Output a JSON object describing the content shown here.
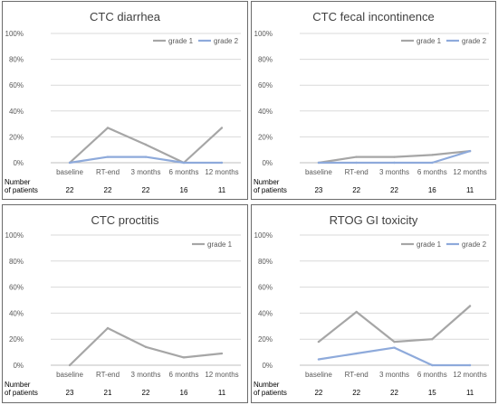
{
  "chart_data": [
    {
      "type": "line",
      "title": "CTC diarrhea",
      "categories": [
        "baseline",
        "RT-end",
        "3 months",
        "6 months",
        "12 months"
      ],
      "ylim": [
        0,
        100
      ],
      "yticks": [
        "0%",
        "20%",
        "40%",
        "60%",
        "80%",
        "100%"
      ],
      "grid": true,
      "legend_position": "top-right",
      "series": [
        {
          "name": "grade 1",
          "color": "#a6a6a6",
          "values": [
            0,
            27,
            14,
            0,
            27
          ]
        },
        {
          "name": "grade 2",
          "color": "#8eaadb",
          "values": [
            0,
            4.5,
            4.5,
            0,
            0
          ]
        }
      ],
      "patients_label": [
        "Number",
        "of patients"
      ],
      "patients": [
        "22",
        "22",
        "22",
        "16",
        "11"
      ]
    },
    {
      "type": "line",
      "title": "CTC fecal incontinence",
      "categories": [
        "baseline",
        "RT-end",
        "3 months",
        "6 months",
        "12 months"
      ],
      "ylim": [
        0,
        100
      ],
      "yticks": [
        "0%",
        "20%",
        "40%",
        "60%",
        "80%",
        "100%"
      ],
      "grid": true,
      "legend_position": "top-right",
      "series": [
        {
          "name": "grade 1",
          "color": "#a6a6a6",
          "values": [
            0,
            4.5,
            4.5,
            6,
            9
          ]
        },
        {
          "name": "grade 2",
          "color": "#8eaadb",
          "values": [
            0,
            0,
            0,
            0,
            9
          ]
        }
      ],
      "patients_label": [
        "Number",
        "of patients"
      ],
      "patients": [
        "23",
        "22",
        "22",
        "16",
        "11"
      ]
    },
    {
      "type": "line",
      "title": "CTC proctitis",
      "categories": [
        "baseline",
        "RT-end",
        "3 months",
        "6 months",
        "12 months"
      ],
      "ylim": [
        0,
        100
      ],
      "yticks": [
        "0%",
        "20%",
        "40%",
        "60%",
        "80%",
        "100%"
      ],
      "grid": true,
      "legend_position": "top-right",
      "series": [
        {
          "name": "grade 1",
          "color": "#a6a6a6",
          "values": [
            0,
            28.5,
            14,
            6,
            9
          ]
        }
      ],
      "patients_label": [
        "Number",
        "of patients"
      ],
      "patients": [
        "23",
        "21",
        "22",
        "16",
        "11"
      ]
    },
    {
      "type": "line",
      "title": "RTOG GI toxicity",
      "categories": [
        "baseline",
        "RT-end",
        "3 months",
        "6 months",
        "12 months"
      ],
      "ylim": [
        0,
        100
      ],
      "yticks": [
        "0%",
        "20%",
        "40%",
        "60%",
        "80%",
        "100%"
      ],
      "grid": true,
      "legend_position": "top-right",
      "series": [
        {
          "name": "grade 1",
          "color": "#a6a6a6",
          "values": [
            18,
            41,
            18,
            20,
            45.5
          ]
        },
        {
          "name": "grade 2",
          "color": "#8eaadb",
          "values": [
            4.5,
            9,
            13.5,
            0,
            0
          ]
        }
      ],
      "patients_label": [
        "Number",
        "of patients"
      ],
      "patients": [
        "22",
        "22",
        "22",
        "15",
        "11"
      ]
    }
  ]
}
